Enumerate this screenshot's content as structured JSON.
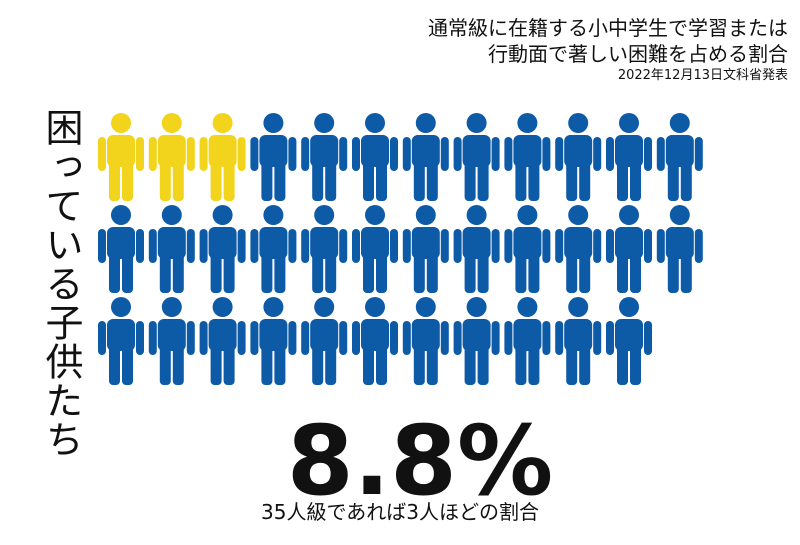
{
  "header": {
    "title_lines": [
      "通常級に在籍する小中学生で学習または",
      "行動面で著しい困難を占める割合"
    ],
    "source": "2022年12月13日文科省発表"
  },
  "side_label": "困っている子供たち",
  "pictogram": {
    "total": 35,
    "highlighted": 3,
    "highlight_color": "#f2d41c",
    "base_color": "#0d5aa7"
  },
  "headline": "8.8%",
  "caption": "35人級であれば3人ほどの割合"
}
